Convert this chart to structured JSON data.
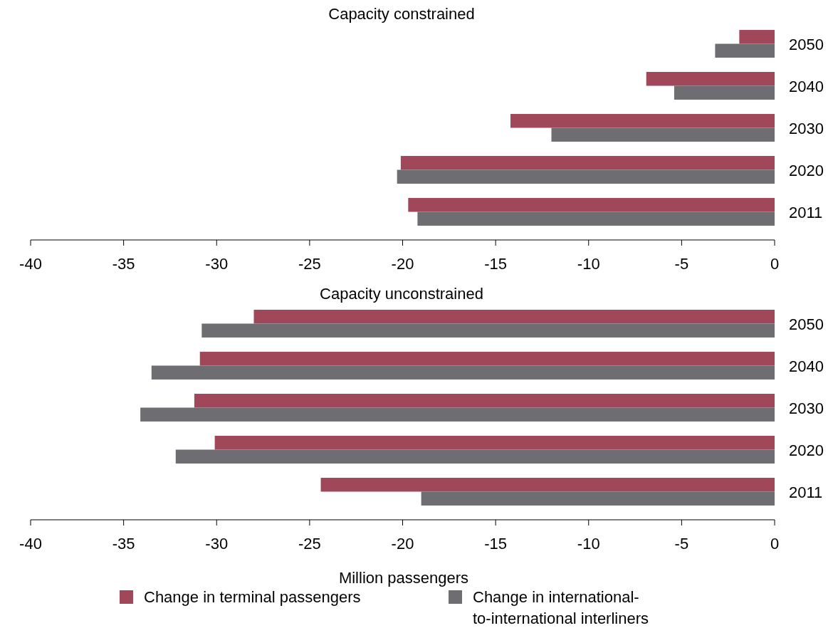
{
  "chart_data": [
    {
      "type": "bar",
      "orientation": "horizontal",
      "title": "Capacity constrained",
      "categories": [
        "2050",
        "2040",
        "2030",
        "2020",
        "2011"
      ],
      "series": [
        {
          "color": "#a0475a",
          "values": [
            -1.9,
            -6.9,
            -14.2,
            -20.1,
            -19.7
          ]
        },
        {
          "color": "#6d6d72",
          "values": [
            -3.2,
            -5.4,
            -12.0,
            -20.3,
            -19.2
          ]
        }
      ],
      "xlim": [
        -40,
        0
      ],
      "xticks": [
        -40,
        -35,
        -30,
        -25,
        -20,
        -15,
        -10,
        -5,
        0
      ],
      "grid": false,
      "legend": false
    },
    {
      "type": "bar",
      "orientation": "horizontal",
      "title": "Capacity unconstrained",
      "xlabel": "Million passengers",
      "categories": [
        "2050",
        "2040",
        "2030",
        "2020",
        "2011"
      ],
      "series": [
        {
          "name": "Change in terminal passengers",
          "color": "#a0475a",
          "values": [
            -28.0,
            -30.9,
            -31.2,
            -30.1,
            -24.4
          ]
        },
        {
          "name": "Change in international-to-international interliners",
          "color": "#6d6d72",
          "values": [
            -30.8,
            -33.5,
            -34.1,
            -32.2,
            -19.0
          ]
        }
      ],
      "xlim": [
        -40,
        0
      ],
      "xticks": [
        -40,
        -35,
        -30,
        -25,
        -20,
        -15,
        -10,
        -5,
        0
      ],
      "grid": false,
      "legend": "bottom"
    }
  ]
}
